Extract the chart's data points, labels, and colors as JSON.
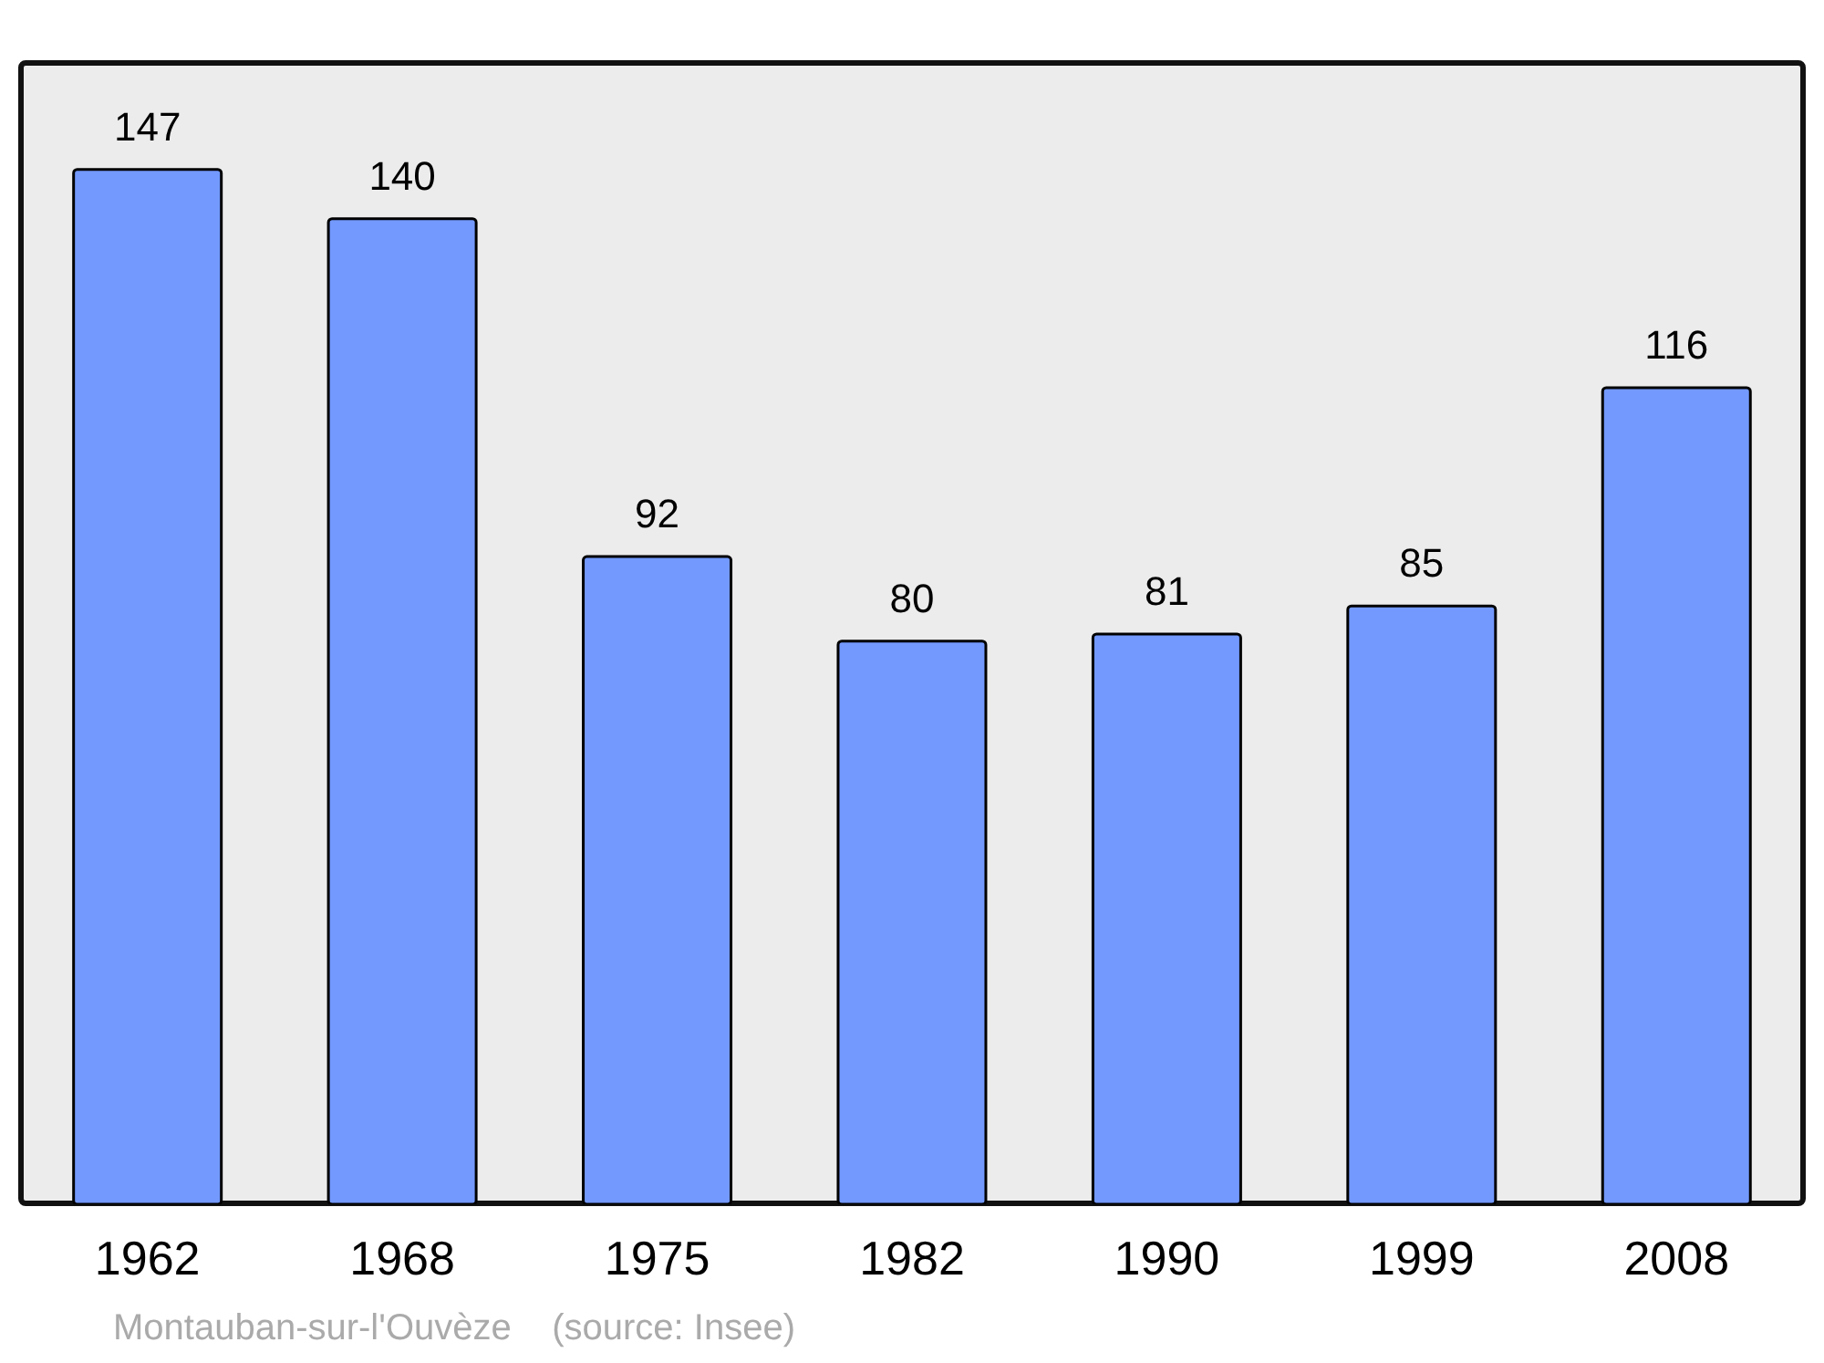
{
  "chart_data": {
    "type": "bar",
    "categories": [
      "1962",
      "1968",
      "1975",
      "1982",
      "1990",
      "1999",
      "2008"
    ],
    "values": [
      147,
      140,
      92,
      80,
      81,
      85,
      116
    ],
    "color": "#7399ff",
    "ylim": [
      0,
      162
    ],
    "data_labels": true,
    "annotations": [
      "Montauban-sur-l'Ouvèze    (source: Insee)"
    ]
  }
}
